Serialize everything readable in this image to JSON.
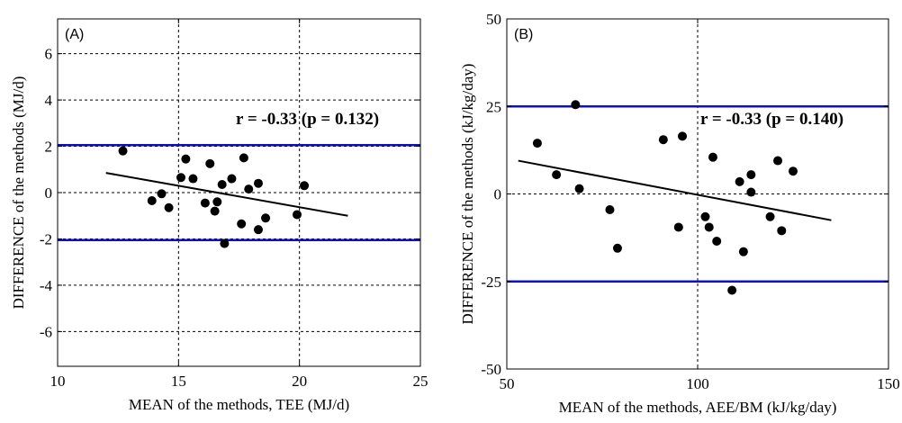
{
  "chart_data": [
    {
      "type": "scatter",
      "panel_label": "(A)",
      "xlabel": "MEAN of the methods, TEE (MJ/d)",
      "ylabel": "DIFFERENCE of the methods (MJ/d)",
      "xlim": [
        10,
        25
      ],
      "ylim": [
        -7.5,
        7.5
      ],
      "xticks": [
        10,
        15,
        20,
        25
      ],
      "yticks": [
        6,
        4,
        2,
        0,
        -2,
        -4,
        -6
      ],
      "grid": true,
      "annotation": "r = -0.33 (p = 0.132)",
      "limits": [
        2.05,
        -2.05
      ],
      "limit_color": "#1010c0",
      "regression": {
        "x": [
          12,
          22
        ],
        "y": [
          0.85,
          -1.0
        ]
      },
      "points": [
        {
          "x": 12.7,
          "y": 1.8
        },
        {
          "x": 13.9,
          "y": -0.35
        },
        {
          "x": 14.3,
          "y": -0.05
        },
        {
          "x": 14.6,
          "y": -0.65
        },
        {
          "x": 15.1,
          "y": 0.65
        },
        {
          "x": 15.3,
          "y": 1.45
        },
        {
          "x": 15.6,
          "y": 0.6
        },
        {
          "x": 16.1,
          "y": -0.45
        },
        {
          "x": 16.3,
          "y": 1.25
        },
        {
          "x": 16.5,
          "y": -0.8
        },
        {
          "x": 16.6,
          "y": -0.4
        },
        {
          "x": 16.8,
          "y": 0.35
        },
        {
          "x": 16.9,
          "y": -2.2
        },
        {
          "x": 17.2,
          "y": 0.6
        },
        {
          "x": 17.6,
          "y": -1.35
        },
        {
          "x": 17.7,
          "y": 1.5
        },
        {
          "x": 17.9,
          "y": 0.15
        },
        {
          "x": 18.3,
          "y": 0.4
        },
        {
          "x": 18.3,
          "y": -1.6
        },
        {
          "x": 18.6,
          "y": -1.1
        },
        {
          "x": 19.9,
          "y": -0.95
        },
        {
          "x": 20.2,
          "y": 0.3
        }
      ]
    },
    {
      "type": "scatter",
      "panel_label": "(B)",
      "xlabel": "MEAN of the methods, AEE/BM (kJ/kg/day)",
      "ylabel": "DIFFERENCE of the methods (kJ/kg/day)",
      "xlim": [
        50,
        150
      ],
      "ylim": [
        -50,
        50
      ],
      "xticks": [
        50,
        100,
        150
      ],
      "yticks": [
        50,
        25,
        0,
        -25,
        -50
      ],
      "grid": true,
      "annotation": "r = -0.33 (p = 0.140)",
      "limits": [
        25,
        -25
      ],
      "limit_color": "#1010c0",
      "regression": {
        "x": [
          53,
          135
        ],
        "y": [
          9.5,
          -7.5
        ]
      },
      "points": [
        {
          "x": 58,
          "y": 14.5
        },
        {
          "x": 63,
          "y": 5.5
        },
        {
          "x": 68,
          "y": 25.5
        },
        {
          "x": 69,
          "y": 1.5
        },
        {
          "x": 77,
          "y": -4.5
        },
        {
          "x": 79,
          "y": -15.5
        },
        {
          "x": 91,
          "y": 15.5
        },
        {
          "x": 95,
          "y": -9.5
        },
        {
          "x": 96,
          "y": 16.5
        },
        {
          "x": 102,
          "y": -6.5
        },
        {
          "x": 103,
          "y": -9.5
        },
        {
          "x": 104,
          "y": 10.5
        },
        {
          "x": 105,
          "y": -13.5
        },
        {
          "x": 109,
          "y": -27.5
        },
        {
          "x": 111,
          "y": 3.5
        },
        {
          "x": 112,
          "y": -16.5
        },
        {
          "x": 114,
          "y": 0.5
        },
        {
          "x": 114,
          "y": 5.5
        },
        {
          "x": 119,
          "y": -6.5
        },
        {
          "x": 121,
          "y": 9.5
        },
        {
          "x": 122,
          "y": -10.5
        },
        {
          "x": 125,
          "y": 6.5
        }
      ]
    }
  ]
}
